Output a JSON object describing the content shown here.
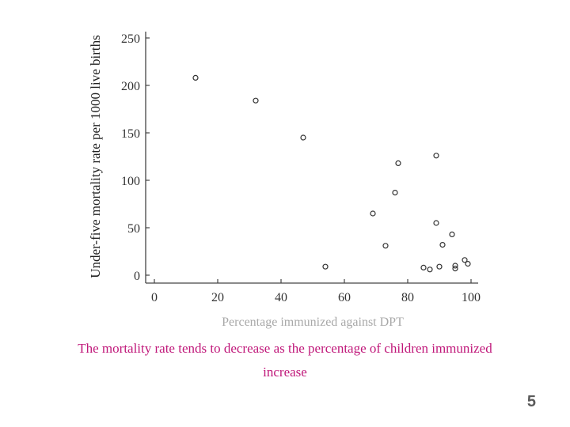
{
  "chart_data": {
    "type": "scatter",
    "xlabel": "Percentage immunized against DPT",
    "ylabel": "Under-five mortality rate per 1000 live births",
    "xlim": [
      0,
      100
    ],
    "ylim": [
      0,
      250
    ],
    "x_ticks": [
      0,
      20,
      40,
      60,
      80,
      100
    ],
    "y_ticks": [
      0,
      50,
      100,
      150,
      200,
      250
    ],
    "grid": false,
    "points": [
      {
        "x": 13,
        "y": 208
      },
      {
        "x": 32,
        "y": 184
      },
      {
        "x": 47,
        "y": 145
      },
      {
        "x": 54,
        "y": 9
      },
      {
        "x": 69,
        "y": 65
      },
      {
        "x": 73,
        "y": 31
      },
      {
        "x": 76,
        "y": 87
      },
      {
        "x": 77,
        "y": 118
      },
      {
        "x": 85,
        "y": 8
      },
      {
        "x": 87,
        "y": 6
      },
      {
        "x": 89,
        "y": 126
      },
      {
        "x": 89,
        "y": 55
      },
      {
        "x": 90,
        "y": 9
      },
      {
        "x": 91,
        "y": 32
      },
      {
        "x": 94,
        "y": 43
      },
      {
        "x": 95,
        "y": 10
      },
      {
        "x": 95,
        "y": 7
      },
      {
        "x": 98,
        "y": 16
      },
      {
        "x": 99,
        "y": 12
      }
    ]
  },
  "caption": {
    "line1": "The mortality rate tends to decrease as the percentage of children immunized",
    "line2": "increase"
  },
  "page_number": "5",
  "colors": {
    "caption": "#c0187a",
    "axis": "#444444",
    "marker": "#333333"
  }
}
